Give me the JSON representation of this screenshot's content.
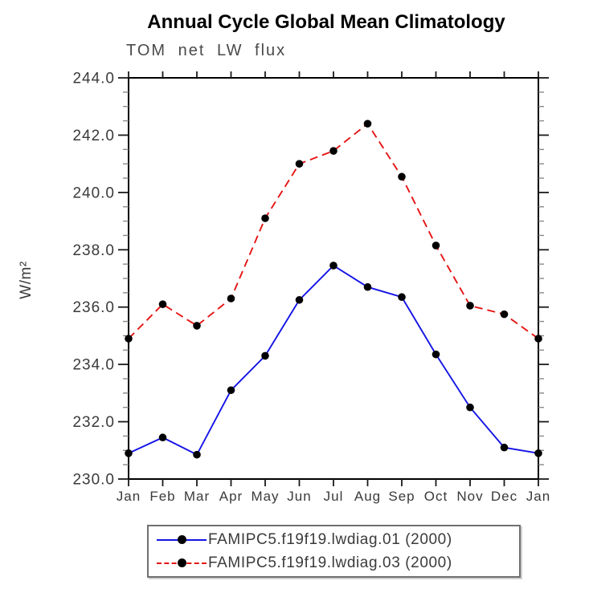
{
  "page": {
    "title": "Annual Cycle Global Mean Climatology",
    "subtitle": "TOM net LW flux"
  },
  "chart_data": {
    "type": "line",
    "title": "Annual Cycle Global Mean Climatology",
    "subtitle": "TOM net LW flux",
    "xlabel": "",
    "ylabel": "W/m²",
    "categories": [
      "Jan",
      "Feb",
      "Mar",
      "Apr",
      "May",
      "Jun",
      "Jul",
      "Aug",
      "Sep",
      "Oct",
      "Nov",
      "Dec",
      "Jan"
    ],
    "ylim": [
      230.0,
      244.0
    ],
    "ytick_step": 2.0,
    "ytick_minor_step": 0.5,
    "ytick_labels": [
      "230.0",
      "232.0",
      "234.0",
      "236.0",
      "238.0",
      "240.0",
      "242.0",
      "244.0"
    ],
    "grid": false,
    "legend_position": "bottom",
    "series": [
      {
        "name": "FAMIPC5.f19f19.lwdiag.01 (2000)",
        "color": "#1414e6",
        "line_style": "solid",
        "marker": "circle",
        "marker_color": "#000000",
        "values": [
          230.9,
          231.45,
          230.85,
          233.1,
          234.3,
          236.25,
          237.45,
          236.7,
          236.35,
          234.35,
          232.5,
          231.1,
          230.9
        ]
      },
      {
        "name": "FAMIPC5.f19f19.lwdiag.03 (2000)",
        "color": "#e61414",
        "line_style": "dashed",
        "marker": "circle",
        "marker_color": "#000000",
        "values": [
          234.9,
          236.1,
          235.35,
          236.3,
          239.1,
          241.0,
          241.45,
          242.4,
          240.55,
          238.15,
          236.05,
          235.75,
          234.9
        ]
      }
    ],
    "axis_color": "#000000",
    "tick_label_color": "#3a3a3a",
    "minor_tick_color": "#8a8a8a"
  }
}
